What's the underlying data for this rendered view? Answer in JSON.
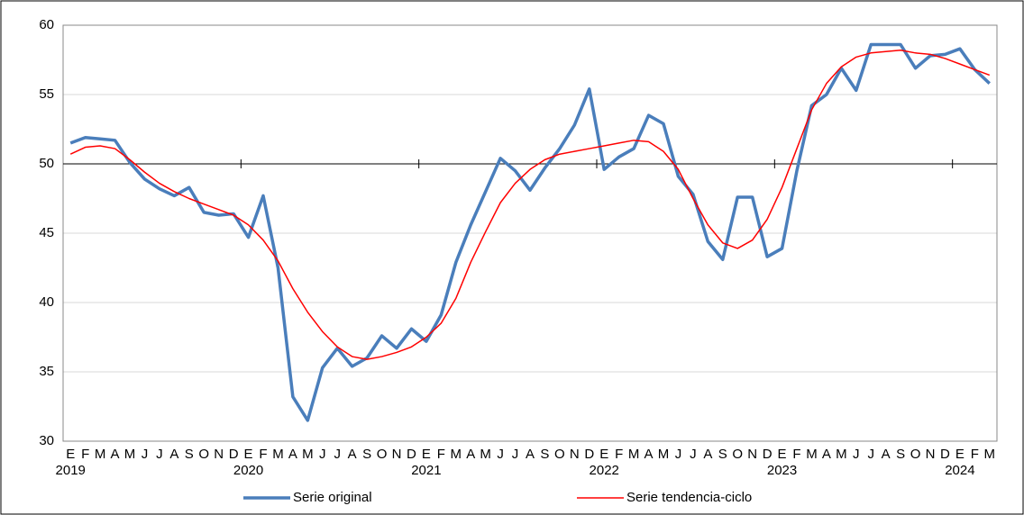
{
  "chart_data": {
    "type": "line",
    "categories": [
      "E",
      "F",
      "M",
      "A",
      "M",
      "J",
      "J",
      "A",
      "S",
      "O",
      "N",
      "D",
      "E",
      "F",
      "M",
      "A",
      "M",
      "J",
      "J",
      "A",
      "S",
      "O",
      "N",
      "D",
      "E",
      "F",
      "M",
      "A",
      "M",
      "J",
      "J",
      "A",
      "S",
      "O",
      "N",
      "D",
      "E",
      "F",
      "M",
      "A",
      "M",
      "J",
      "J",
      "A",
      "S",
      "O",
      "N",
      "D",
      "E",
      "F",
      "M",
      "A",
      "M",
      "J",
      "J",
      "A",
      "S",
      "O",
      "N",
      "D",
      "E",
      "F",
      "M"
    ],
    "year_labels": [
      "2019",
      "2020",
      "2021",
      "2022",
      "2023",
      "2024"
    ],
    "series": [
      {
        "name": "Serie original",
        "color": "#4a7ebb",
        "values": [
          51.5,
          51.9,
          51.8,
          51.7,
          50.1,
          48.9,
          48.2,
          47.7,
          48.3,
          46.5,
          46.3,
          46.4,
          44.7,
          47.7,
          42.5,
          33.2,
          31.5,
          35.3,
          36.7,
          35.4,
          36.0,
          37.6,
          36.7,
          38.1,
          37.2,
          39.1,
          42.9,
          45.6,
          48.0,
          50.4,
          49.5,
          48.1,
          49.7,
          51.1,
          52.8,
          55.4,
          49.6,
          50.5,
          51.1,
          53.5,
          52.9,
          49.1,
          47.8,
          44.4,
          43.1,
          47.6,
          47.6,
          43.3,
          43.9,
          49.5,
          54.2,
          55.0,
          56.9,
          55.3,
          58.6,
          58.6,
          58.6,
          56.9,
          57.8,
          57.9,
          58.3,
          56.8,
          55.8
        ]
      },
      {
        "name": "Serie tendencia-ciclo",
        "color": "#ff0000",
        "values": [
          50.7,
          51.2,
          51.3,
          51.1,
          50.3,
          49.4,
          48.6,
          48.0,
          47.5,
          47.1,
          46.7,
          46.3,
          45.6,
          44.5,
          43.0,
          41.0,
          39.3,
          37.9,
          36.8,
          36.1,
          35.9,
          36.1,
          36.4,
          36.8,
          37.5,
          38.5,
          40.3,
          42.9,
          45.1,
          47.2,
          48.6,
          49.6,
          50.3,
          50.7,
          50.9,
          51.1,
          51.3,
          51.5,
          51.7,
          51.6,
          50.9,
          49.6,
          47.5,
          45.6,
          44.3,
          43.9,
          44.5,
          46.0,
          48.3,
          51.1,
          53.9,
          55.8,
          57.0,
          57.7,
          58.0,
          58.1,
          58.2,
          58.0,
          57.9,
          57.6,
          57.2,
          56.8,
          56.4
        ]
      }
    ],
    "ylim": [
      30,
      60
    ],
    "yticks": [
      30,
      35,
      40,
      45,
      50,
      55,
      60
    ],
    "grid": true,
    "hline": 50,
    "legend": "bottom"
  }
}
